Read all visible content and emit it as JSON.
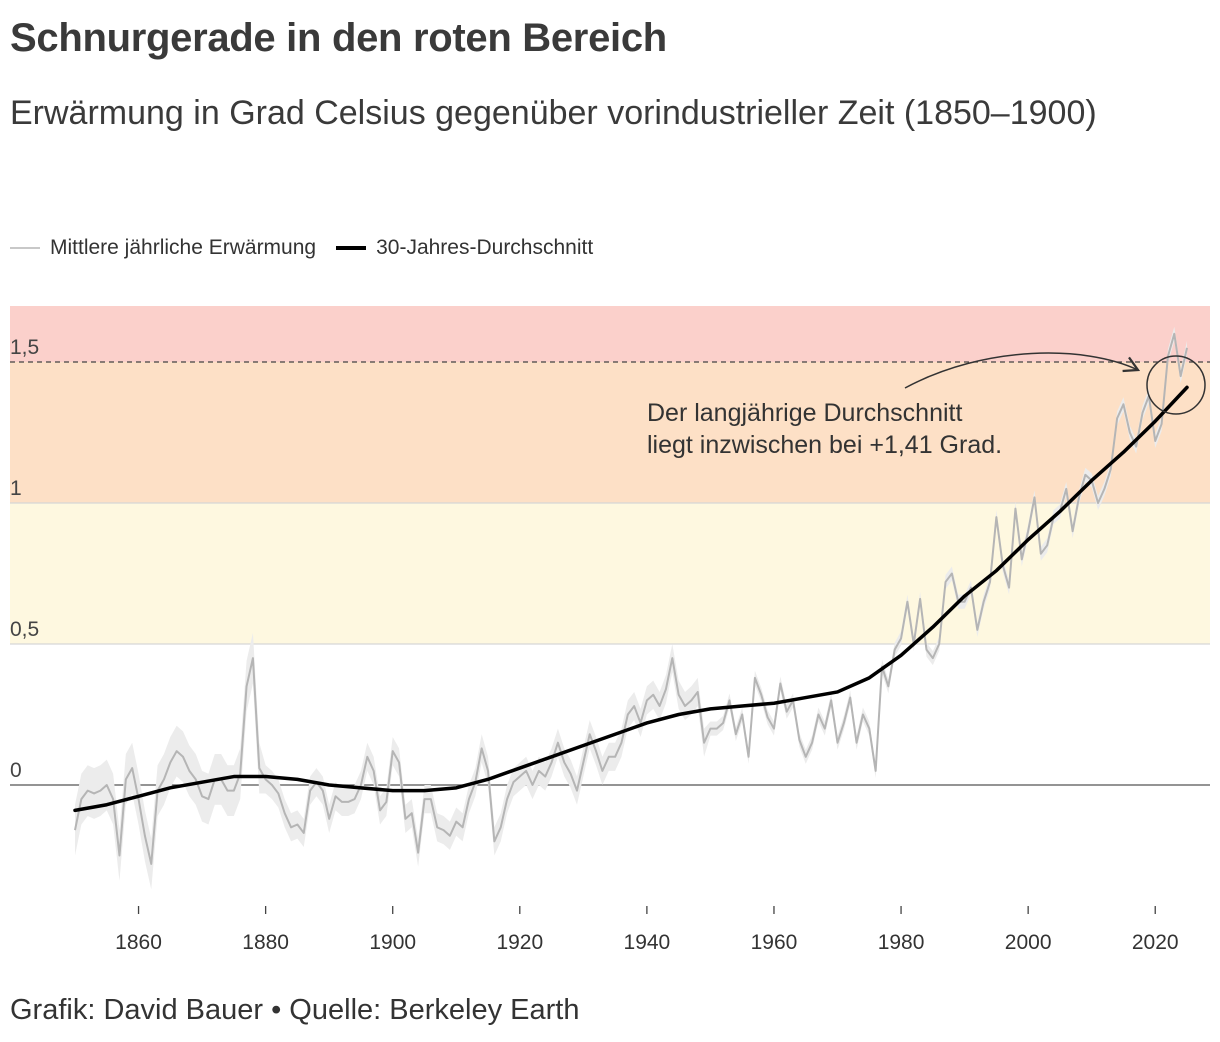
{
  "title": "Schnurgerade in den roten Bereich",
  "subtitle": "Erwärmung in Grad Celsius gegenüber vorindustrieller Zeit (1850–1900)",
  "legend": {
    "annual": "Mittlere jährliche Erwärmung",
    "average": "30-Jahres-Durchschnitt"
  },
  "footer": "Grafik: David Bauer • Quelle: Berkeley Earth",
  "annotation": {
    "line1": "Der langjährige Durchschnitt",
    "line2": "liegt inzwischen bei +1,41 Grad."
  },
  "colors": {
    "zone_red": "#fbd0cb",
    "zone_orange": "#fde0c6",
    "zone_yellow": "#fef8e0",
    "annual_line": "#b5b5b5",
    "uncertainty": "#ececec",
    "average_line": "#000000"
  },
  "chart_data": {
    "type": "line",
    "title": "Schnurgerade in den roten Bereich",
    "xlabel": "",
    "ylabel": "Erwärmung in Grad Celsius",
    "xlim": [
      1850,
      2025
    ],
    "ylim": [
      -0.42,
      1.7
    ],
    "x_ticks": [
      1860,
      1880,
      1900,
      1920,
      1940,
      1960,
      1980,
      2000,
      2020
    ],
    "x_tick_labels": [
      "1860",
      "1880",
      "1900",
      "1920",
      "1940",
      "1960",
      "1980",
      "2000",
      "2020"
    ],
    "y_ticks": [
      0,
      0.5,
      1,
      1.5
    ],
    "y_tick_labels": [
      "0",
      "0,5",
      "1",
      "1,5"
    ],
    "zones": [
      {
        "from": 0.5,
        "to": 1.0,
        "color": "yellow"
      },
      {
        "from": 1.0,
        "to": 1.5,
        "color": "orange"
      },
      {
        "from": 1.5,
        "to": 1.7,
        "color": "red"
      }
    ],
    "threshold": 1.5,
    "grid": "horizontal",
    "legend_position": "top-left",
    "series": [
      {
        "name": "Mittlere jährliche Erwärmung",
        "x": [
          1850,
          1851,
          1852,
          1853,
          1854,
          1855,
          1856,
          1857,
          1858,
          1859,
          1860,
          1861,
          1862,
          1863,
          1864,
          1865,
          1866,
          1867,
          1868,
          1869,
          1870,
          1871,
          1872,
          1873,
          1874,
          1875,
          1876,
          1877,
          1878,
          1879,
          1880,
          1881,
          1882,
          1883,
          1884,
          1885,
          1886,
          1887,
          1888,
          1889,
          1890,
          1891,
          1892,
          1893,
          1894,
          1895,
          1896,
          1897,
          1898,
          1899,
          1900,
          1901,
          1902,
          1903,
          1904,
          1905,
          1906,
          1907,
          1908,
          1909,
          1910,
          1911,
          1912,
          1913,
          1914,
          1915,
          1916,
          1917,
          1918,
          1919,
          1920,
          1921,
          1922,
          1923,
          1924,
          1925,
          1926,
          1927,
          1928,
          1929,
          1930,
          1931,
          1932,
          1933,
          1934,
          1935,
          1936,
          1937,
          1938,
          1939,
          1940,
          1941,
          1942,
          1943,
          1944,
          1945,
          1946,
          1947,
          1948,
          1949,
          1950,
          1951,
          1952,
          1953,
          1954,
          1955,
          1956,
          1957,
          1958,
          1959,
          1960,
          1961,
          1962,
          1963,
          1964,
          1965,
          1966,
          1967,
          1968,
          1969,
          1970,
          1971,
          1972,
          1973,
          1974,
          1975,
          1976,
          1977,
          1978,
          1979,
          1980,
          1981,
          1982,
          1983,
          1984,
          1985,
          1986,
          1987,
          1988,
          1989,
          1990,
          1991,
          1992,
          1993,
          1994,
          1995,
          1996,
          1997,
          1998,
          1999,
          2000,
          2001,
          2002,
          2003,
          2004,
          2005,
          2006,
          2007,
          2008,
          2009,
          2010,
          2011,
          2012,
          2013,
          2014,
          2015,
          2016,
          2017,
          2018,
          2019,
          2020,
          2021,
          2022,
          2023,
          2024,
          2025
        ],
        "values": [
          -0.16,
          -0.05,
          -0.02,
          -0.03,
          -0.02,
          0.0,
          -0.05,
          -0.25,
          0.02,
          0.06,
          -0.05,
          -0.18,
          -0.28,
          -0.02,
          0.02,
          0.08,
          0.12,
          0.1,
          0.05,
          0.02,
          -0.04,
          -0.05,
          0.02,
          0.02,
          -0.02,
          -0.02,
          0.04,
          0.35,
          0.45,
          0.06,
          0.02,
          0.0,
          -0.03,
          -0.1,
          -0.15,
          -0.14,
          -0.17,
          -0.02,
          0.01,
          -0.02,
          -0.12,
          -0.04,
          -0.06,
          -0.06,
          -0.05,
          0.0,
          0.1,
          0.05,
          -0.09,
          -0.06,
          0.12,
          0.08,
          -0.12,
          -0.1,
          -0.24,
          -0.05,
          -0.05,
          -0.15,
          -0.16,
          -0.18,
          -0.13,
          -0.15,
          -0.05,
          0.01,
          0.13,
          0.05,
          -0.2,
          -0.15,
          -0.05,
          0.01,
          0.03,
          0.05,
          0.0,
          0.05,
          0.03,
          0.08,
          0.15,
          0.08,
          0.04,
          -0.02,
          0.08,
          0.18,
          0.12,
          0.05,
          0.1,
          0.1,
          0.15,
          0.25,
          0.28,
          0.22,
          0.3,
          0.32,
          0.28,
          0.34,
          0.45,
          0.32,
          0.28,
          0.3,
          0.33,
          0.15,
          0.2,
          0.2,
          0.22,
          0.3,
          0.18,
          0.25,
          0.1,
          0.38,
          0.32,
          0.24,
          0.2,
          0.36,
          0.26,
          0.3,
          0.16,
          0.1,
          0.15,
          0.25,
          0.2,
          0.3,
          0.15,
          0.22,
          0.31,
          0.15,
          0.25,
          0.2,
          0.05,
          0.42,
          0.35,
          0.48,
          0.52,
          0.65,
          0.5,
          0.66,
          0.48,
          0.45,
          0.5,
          0.72,
          0.75,
          0.65,
          0.65,
          0.7,
          0.55,
          0.65,
          0.72,
          0.95,
          0.78,
          0.7,
          0.98,
          0.8,
          0.9,
          1.02,
          0.82,
          0.85,
          0.95,
          0.97,
          1.05,
          0.9,
          1.02,
          1.1,
          1.08,
          1.0,
          1.05,
          1.12,
          1.3,
          1.35,
          1.25,
          1.2,
          1.32,
          1.38,
          1.22,
          1.28,
          1.52,
          1.6,
          1.45,
          1.55
        ]
      },
      {
        "name": "30-Jahres-Durchschnitt",
        "x": [
          1850,
          1855,
          1860,
          1865,
          1870,
          1875,
          1880,
          1885,
          1890,
          1895,
          1900,
          1905,
          1910,
          1915,
          1920,
          1925,
          1930,
          1935,
          1940,
          1945,
          1950,
          1955,
          1960,
          1965,
          1970,
          1975,
          1980,
          1985,
          1990,
          1995,
          2000,
          2005,
          2010,
          2015,
          2020,
          2025
        ],
        "values": [
          -0.09,
          -0.07,
          -0.04,
          -0.01,
          0.01,
          0.03,
          0.03,
          0.02,
          0.0,
          -0.01,
          -0.02,
          -0.02,
          -0.01,
          0.02,
          0.06,
          0.1,
          0.14,
          0.18,
          0.22,
          0.25,
          0.27,
          0.28,
          0.29,
          0.31,
          0.33,
          0.38,
          0.46,
          0.56,
          0.67,
          0.76,
          0.87,
          0.97,
          1.08,
          1.18,
          1.29,
          1.41
        ]
      }
    ]
  }
}
